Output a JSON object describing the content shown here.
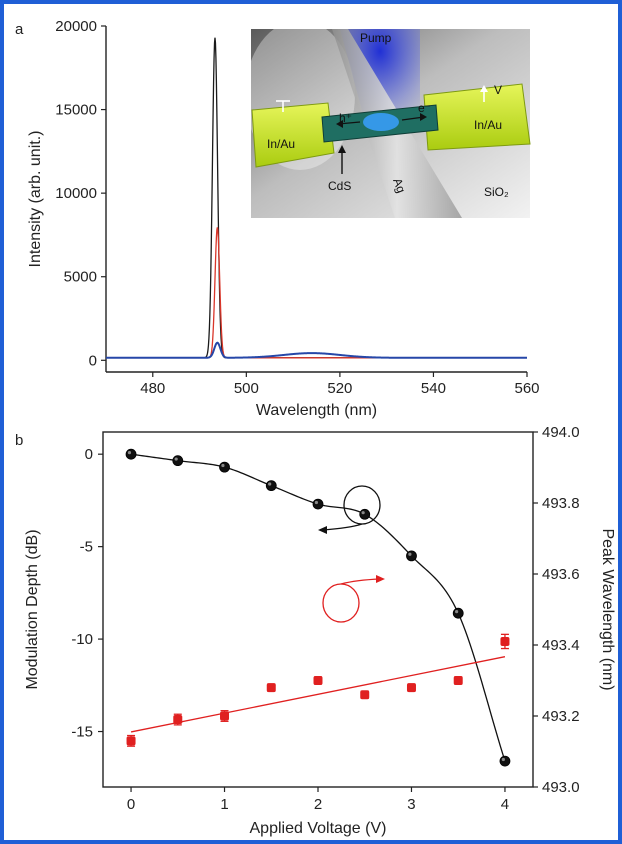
{
  "chart_data": [
    {
      "panel": "a",
      "type": "line",
      "xlabel": "Wavelength (nm)",
      "ylabel": "Intensity (arb. unit.)",
      "xlim": [
        470,
        560
      ],
      "ylim": [
        -700,
        20000
      ],
      "xticks": [
        480,
        500,
        520,
        540,
        560
      ],
      "yticks": [
        0,
        5000,
        10000,
        15000,
        20000
      ],
      "series": [
        {
          "color": "#1a1a1a",
          "peak_x": 493.3,
          "peak_y": 19300,
          "width": 0.55,
          "baseline": 150
        },
        {
          "color": "#d9362a",
          "peak_x": 493.8,
          "peak_y": 7950,
          "width": 0.5,
          "baseline": 150
        },
        {
          "color": "#2647a8",
          "peak_x": 493.8,
          "peak_y": 1050,
          "width": 0.65,
          "baseline": 150,
          "bump_x": 514,
          "bump_y": 430
        }
      ],
      "inset_labels": {
        "pump": "Pump",
        "v": "V",
        "left_contact": "In/Au",
        "right_contact": "In/Au",
        "hole": "h⁺",
        "electron": "e⁻",
        "wire": "CdS",
        "silver": "Ag",
        "substrate": "SiO₂"
      }
    },
    {
      "panel": "b",
      "type": "scatter",
      "xlabel": "Applied Voltage (V)",
      "ylabel_left": "Modulation Depth (dB)",
      "ylabel_right": "Peak Wavelength (nm)",
      "xlim": [
        -0.3,
        4.3
      ],
      "ylim_left": [
        -18,
        1.2
      ],
      "ylim_right": [
        493.0,
        494.0
      ],
      "xticks": [
        0,
        1,
        2,
        3,
        4
      ],
      "yticks_left": [
        0,
        -5,
        -10,
        -15
      ],
      "yticks_right": [
        "493.0",
        "493.2",
        "493.4",
        "493.6",
        "493.8",
        "494.0"
      ],
      "series": [
        {
          "axis": "left",
          "color": "#111111",
          "x": [
            0,
            0.5,
            1,
            1.5,
            2,
            2.5,
            3,
            3.5,
            4
          ],
          "y": [
            0,
            -0.35,
            -0.7,
            -1.7,
            -2.7,
            -3.25,
            -5.5,
            -8.6,
            -16.6
          ],
          "fit": "curve"
        },
        {
          "axis": "right",
          "color": "#e02020",
          "x": [
            0,
            0.5,
            1,
            1.5,
            2,
            2.5,
            3,
            3.5,
            4
          ],
          "y": [
            493.13,
            493.19,
            493.2,
            493.28,
            493.3,
            493.26,
            493.28,
            493.3,
            493.41
          ],
          "err": [
            0.015,
            0.015,
            0.015,
            0.01,
            0.01,
            0.01,
            0.01,
            0.01,
            0.02
          ],
          "fit": "linear"
        }
      ]
    }
  ],
  "panel_labels": {
    "a": "a",
    "b": "b"
  }
}
